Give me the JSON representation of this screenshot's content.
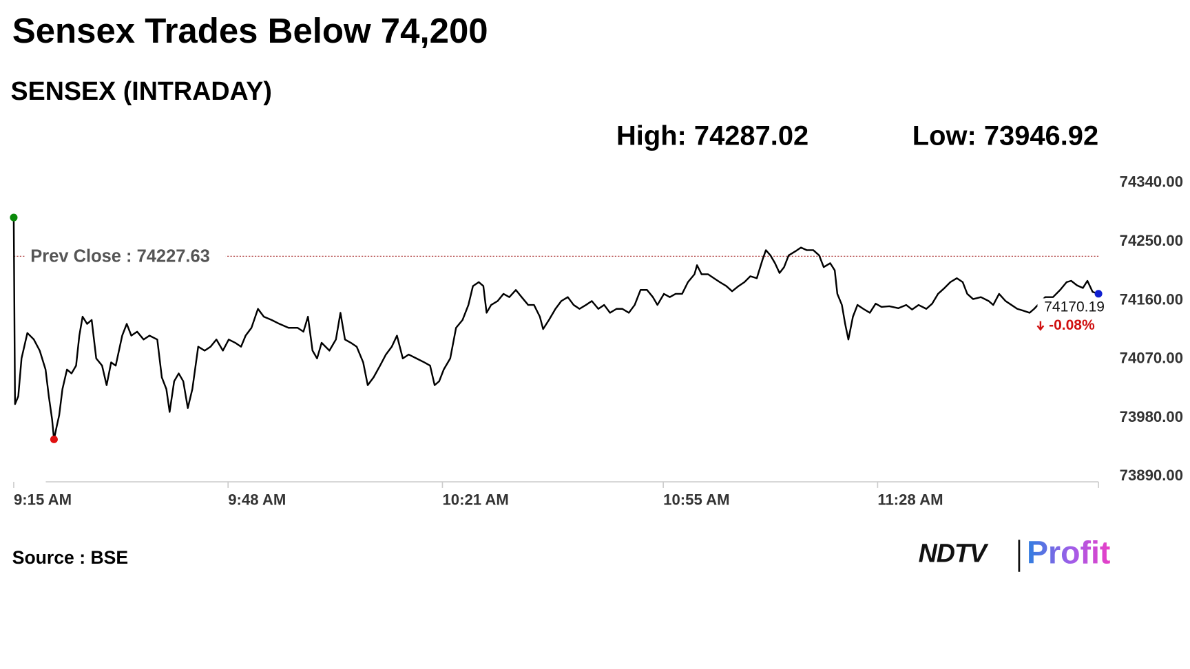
{
  "chart_data": {
    "type": "line",
    "title": "Sensex Trades Below 74,200",
    "subtitle": "SENSEX (INTRADAY)",
    "high": {
      "label": "High:",
      "value": 74287.02
    },
    "low": {
      "label": "Low:",
      "value": 73946.92
    },
    "prev_close": {
      "label": "Prev Close :",
      "value": 74227.63
    },
    "change": {
      "value": -0.08,
      "label": "-0.08%"
    },
    "color": "#000000",
    "xlim": [
      0,
      167
    ],
    "xticks": [
      {
        "value": 0,
        "label": "9:15 AM"
      },
      {
        "value": 33,
        "label": "9:48 AM"
      },
      {
        "value": 66,
        "label": "10:21 AM"
      },
      {
        "value": 100,
        "label": "10:55 AM"
      },
      {
        "value": 133,
        "label": "11:28 AM"
      }
    ],
    "ylim": [
      73890,
      74340
    ],
    "yticks": [
      {
        "value": 74340,
        "label": "74340.00"
      },
      {
        "value": 74250,
        "label": "74250.00"
      },
      {
        "value": 74160,
        "label": "74160.00"
      },
      {
        "value": 74070,
        "label": "74070.00"
      },
      {
        "value": 73980,
        "label": "73980.00"
      },
      {
        "value": 73890,
        "label": "73890.00"
      }
    ],
    "x": [
      0,
      0.2,
      0.7,
      1.2,
      2.1,
      3.1,
      4.0,
      4.9,
      5.4,
      5.9,
      6.2,
      6.6,
      7.0,
      7.5,
      8.2,
      8.9,
      9.6,
      10.1,
      10.6,
      11.3,
      12.0,
      12.7,
      13.6,
      14.3,
      15.0,
      15.7,
      16.7,
      17.4,
      18.1,
      19.0,
      20.0,
      20.9,
      22.1,
      22.8,
      23.5,
      24.0,
      24.7,
      25.4,
      26.1,
      26.8,
      27.5,
      28.4,
      29.4,
      30.3,
      31.2,
      32.2,
      33.1,
      34.1,
      35.0,
      35.7,
      36.6,
      37.6,
      38.5,
      39.7,
      40.9,
      42.3,
      43.7,
      44.6,
      45.3,
      46.0,
      46.7,
      47.4,
      48.6,
      49.6,
      50.3,
      51.0,
      51.9,
      52.8,
      53.8,
      54.5,
      55.4,
      56.4,
      57.3,
      58.2,
      59.0,
      59.9,
      60.8,
      62.0,
      63.2,
      64.1,
      64.8,
      65.5,
      66.2,
      67.2,
      68.1,
      69.1,
      70.0,
      70.7,
      71.6,
      72.3,
      72.8,
      73.5,
      74.5,
      75.4,
      76.3,
      77.3,
      78.2,
      79.2,
      80.1,
      81.0,
      81.5,
      82.4,
      83.4,
      84.3,
      85.3,
      86.2,
      87.1,
      88.1,
      89.0,
      90.0,
      90.9,
      91.8,
      92.8,
      93.7,
      94.7,
      95.6,
      96.5,
      97.5,
      98.4,
      99.1,
      100.1,
      101.0,
      101.9,
      102.9,
      103.8,
      104.8,
      105.2,
      105.9,
      106.9,
      107.8,
      108.7,
      109.7,
      110.6,
      111.6,
      112.5,
      113.4,
      114.4,
      115.3,
      115.8,
      116.5,
      117.2,
      117.9,
      118.6,
      119.3,
      120.3,
      121.2,
      122.1,
      123.1,
      124.0,
      124.7,
      125.7,
      126.4,
      126.8,
      127.5,
      128.0,
      128.5,
      129.2,
      129.9,
      130.8,
      131.8,
      132.7,
      133.6,
      134.8,
      136.2,
      137.4,
      138.3,
      139.3,
      140.5,
      141.4,
      142.3,
      143.3,
      144.2,
      145.2,
      146.1,
      146.8,
      147.7,
      148.9,
      150.1,
      150.8,
      151.7,
      152.7,
      153.6,
      154.5,
      155.5,
      156.4,
      157.1,
      158.8,
      160.0,
      161.1,
      162.1,
      162.8,
      163.7,
      164.6,
      165.3,
      166.1,
      167.0
    ],
    "values": [
      74287.02,
      74001,
      74013,
      74071,
      74110,
      74100,
      74083,
      74054,
      74013,
      73978,
      73946.92,
      73966,
      73984,
      74024,
      74054,
      74048,
      74060,
      74106,
      74135,
      74124,
      74130,
      74071,
      74060,
      74030,
      74065,
      74060,
      74106,
      74124,
      74106,
      74112,
      74100,
      74106,
      74100,
      74042,
      74024,
      73989,
      74036,
      74048,
      74036,
      73995,
      74024,
      74089,
      74083,
      74089,
      74100,
      74083,
      74100,
      74095,
      74089,
      74106,
      74118,
      74147,
      74135,
      74130,
      74124,
      74118,
      74118,
      74112,
      74135,
      74083,
      74071,
      74095,
      74083,
      74100,
      74141,
      74100,
      74095,
      74089,
      74065,
      74030,
      74042,
      74060,
      74077,
      74089,
      74106,
      74071,
      74077,
      74071,
      74065,
      74060,
      74030,
      74036,
      74054,
      74071,
      74118,
      74130,
      74153,
      74182,
      74188,
      74182,
      74141,
      74153,
      74159,
      74170,
      74165,
      74176,
      74165,
      74153,
      74153,
      74135,
      74116,
      74130,
      74147,
      74159,
      74165,
      74153,
      74147,
      74153,
      74159,
      74147,
      74153,
      74141,
      74147,
      74147,
      74141,
      74153,
      74176,
      74176,
      74165,
      74153,
      74170,
      74165,
      74170,
      74170,
      74188,
      74200,
      74214,
      74200,
      74200,
      74194,
      74188,
      74182,
      74174,
      74182,
      74188,
      74197,
      74194,
      74223,
      74237,
      74229,
      74217,
      74202,
      74211,
      74229,
      74235,
      74241,
      74237,
      74237,
      74229,
      74211,
      74217,
      74206,
      74170,
      74153,
      74124,
      74100,
      74135,
      74153,
      74147,
      74141,
      74155,
      74150,
      74151,
      74148,
      74153,
      74146,
      74153,
      74147,
      74155,
      74170,
      74179,
      74188,
      74194,
      74188,
      74170,
      74162,
      74165,
      74159,
      74153,
      74170,
      74159,
      74153,
      74147,
      74144,
      74141,
      74147,
      74165,
      74165,
      74176,
      74188,
      74190,
      74183,
      74179,
      74190,
      74173,
      74170.19
    ]
  },
  "source": "Source : BSE",
  "logo": {
    "left": "NDTV",
    "right": "Profit"
  }
}
